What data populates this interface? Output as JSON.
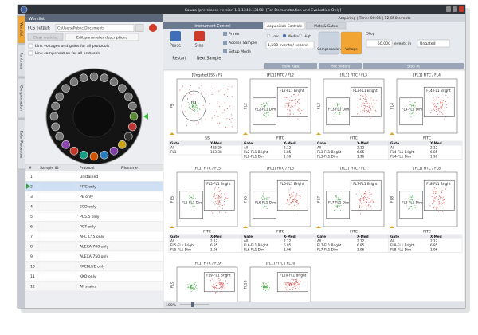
{
  "window": {
    "title": "Kaluza (prerelease version 1.1.1348.13198) [For Demonstration and Evaluation Only]",
    "status": "Acquiring | Time: 00:06 | 12,850 events"
  },
  "sidebar_tabs": [
    "Worklist",
    "Runtimes",
    "Compensation",
    "Color Procedure"
  ],
  "worklist": {
    "title": "Worklist",
    "fcs_label": "FCS output:",
    "fcs_path": "C:\\Users\\Public\\Documents",
    "buttons": [
      "Clear worklist",
      "Edit parameter descriptions"
    ],
    "options": [
      "Link voltages and gains for all protocols",
      "Link compensation for all protocols"
    ],
    "columns": [
      "#",
      "Sample ID",
      "Protocol",
      "Filename"
    ],
    "rows": [
      {
        "num": "1",
        "protocol": "Unstained"
      },
      {
        "num": "2",
        "protocol": "FITC only"
      },
      {
        "num": "3",
        "protocol": "PE only"
      },
      {
        "num": "4",
        "protocol": "ECD only"
      },
      {
        "num": "5",
        "protocol": "PC5.5 only"
      },
      {
        "num": "6",
        "protocol": "PC7 only"
      },
      {
        "num": "7",
        "protocol": "APC CY5 only"
      },
      {
        "num": "8",
        "protocol": "ALEXA 700 only"
      },
      {
        "num": "9",
        "protocol": "ALEXA 750 only"
      },
      {
        "num": "10",
        "protocol": "PACBLUE only"
      },
      {
        "num": "11",
        "protocol": "KKO only"
      },
      {
        "num": "12",
        "protocol": "All stains"
      }
    ]
  },
  "toolbar": {
    "section": "Instrument Control",
    "buttons": [
      "Pause",
      "Stop",
      "Restart",
      "Next Sample"
    ],
    "actions": [
      "Prime",
      "Access Sample",
      "Setup Mode"
    ],
    "tabs": [
      "Acquisition Controls",
      "Plots & Gates"
    ],
    "rates": [
      "Low",
      "Medium",
      "High"
    ],
    "rate_value": "1,500 events / second",
    "rate_group": "Flow Rate",
    "slider_buttons": [
      "Compensation",
      "Voltage"
    ],
    "slider_group": "Plot Sliders",
    "stop_label": "Stop",
    "stop_count": "50,000",
    "stop_in": "events in",
    "stop_gate": "Ungated",
    "stop_group": "Stop At"
  },
  "plots": [
    {
      "title": "[Ungated] SS / FS",
      "x_label": "SS",
      "y_label": "FS",
      "gates": [
        "FL1"
      ],
      "stats": {
        "header": [
          "Gate",
          "X-Med"
        ],
        "rows": [
          [
            "All",
            "485.29"
          ],
          [
            "FL1",
            "183.38"
          ]
        ]
      }
    },
    {
      "title": "[FL1] FITC / FL2",
      "x_label": "FITC",
      "y_label": "FL2",
      "gates": [
        "FL2-FL1 Bright",
        "FL2-FL1 Dim"
      ],
      "stats": {
        "header": [
          "Gate",
          "X-Med"
        ],
        "rows": [
          [
            "All",
            "2.12"
          ],
          [
            "FL2-FL1 Bright",
            "6.85"
          ],
          [
            "FL2-FL1 Dim",
            "1.96"
          ]
        ]
      }
    },
    {
      "title": "[FL1] FITC / FL3",
      "x_label": "FITC",
      "y_label": "FL3",
      "gates": [
        "FL3-FL1 Bright",
        "FL3-FL1 Dim"
      ],
      "stats": {
        "header": [
          "Gate",
          "X-Med"
        ],
        "rows": [
          [
            "All",
            "2.12"
          ],
          [
            "FL3-FL1 Bright",
            "6.85"
          ],
          [
            "FL3-FL1 Dim",
            "1.96"
          ]
        ]
      }
    },
    {
      "title": "[FL1] FITC / FL4",
      "x_label": "FITC",
      "y_label": "FL4",
      "gates": [
        "FL4-FL1 Bright",
        "FL4-FL1 Dim"
      ],
      "stats": {
        "header": [
          "Gate",
          "X-Med"
        ],
        "rows": [
          [
            "All",
            "2.12"
          ],
          [
            "FL4-FL1 Bright",
            "6.85"
          ],
          [
            "FL4-FL1 Dim",
            "1.96"
          ]
        ]
      }
    },
    {
      "title": "[FL1] FITC / FL5",
      "x_label": "FITC",
      "y_label": "FL5",
      "gates": [
        "FL5-FL1 Bright",
        "FL5-FL1 Dim"
      ],
      "stats": {
        "header": [
          "Gate",
          "X-Med"
        ],
        "rows": [
          [
            "All",
            "2.12"
          ],
          [
            "FL5-FL1 Bright",
            "6.85"
          ],
          [
            "FL5-FL1 Dim",
            "1.96"
          ]
        ]
      }
    },
    {
      "title": "[FL1] FITC / FL6",
      "x_label": "FITC",
      "y_label": "FL6",
      "gates": [
        "FL6-FL1 Bright",
        "FL6-FL1 Dim"
      ],
      "stats": {
        "header": [
          "Gate",
          "X-Med"
        ],
        "rows": [
          [
            "All",
            "2.12"
          ],
          [
            "FL6-FL1 Bright",
            "6.85"
          ],
          [
            "FL6-FL1 Dim",
            "1.96"
          ]
        ]
      }
    },
    {
      "title": "[FL1] FITC / FL7",
      "x_label": "FITC",
      "y_label": "FL7",
      "gates": [
        "FL7-FL1 Bright",
        "FL7-FL1 Dim"
      ],
      "stats": {
        "header": [
          "Gate",
          "X-Med"
        ],
        "rows": [
          [
            "All",
            "2.12"
          ],
          [
            "FL7-FL1 Bright",
            "6.85"
          ],
          [
            "FL7-FL1 Dim",
            "1.96"
          ]
        ]
      }
    },
    {
      "title": "[FL1] FITC / FL8",
      "x_label": "FITC",
      "y_label": "FL8",
      "gates": [
        "FL8-FL1 Bright",
        "FL8-FL1 Dim"
      ],
      "stats": {
        "header": [
          "Gate",
          "X-Med"
        ],
        "rows": [
          [
            "All",
            "2.12"
          ],
          [
            "FL8-FL1 Bright",
            "6.85"
          ],
          [
            "FL8-FL1 Dim",
            "1.96"
          ]
        ]
      }
    },
    {
      "title": "[FL1] FITC / FL9",
      "y_label": "FL9",
      "gates": [
        "FL9-FL1 Bright"
      ]
    },
    {
      "title": "[FL1] FITC / FL10",
      "y_label": "FL10",
      "gates": [
        "FL10-FL1 Bright"
      ]
    }
  ],
  "zoom": "100%"
}
